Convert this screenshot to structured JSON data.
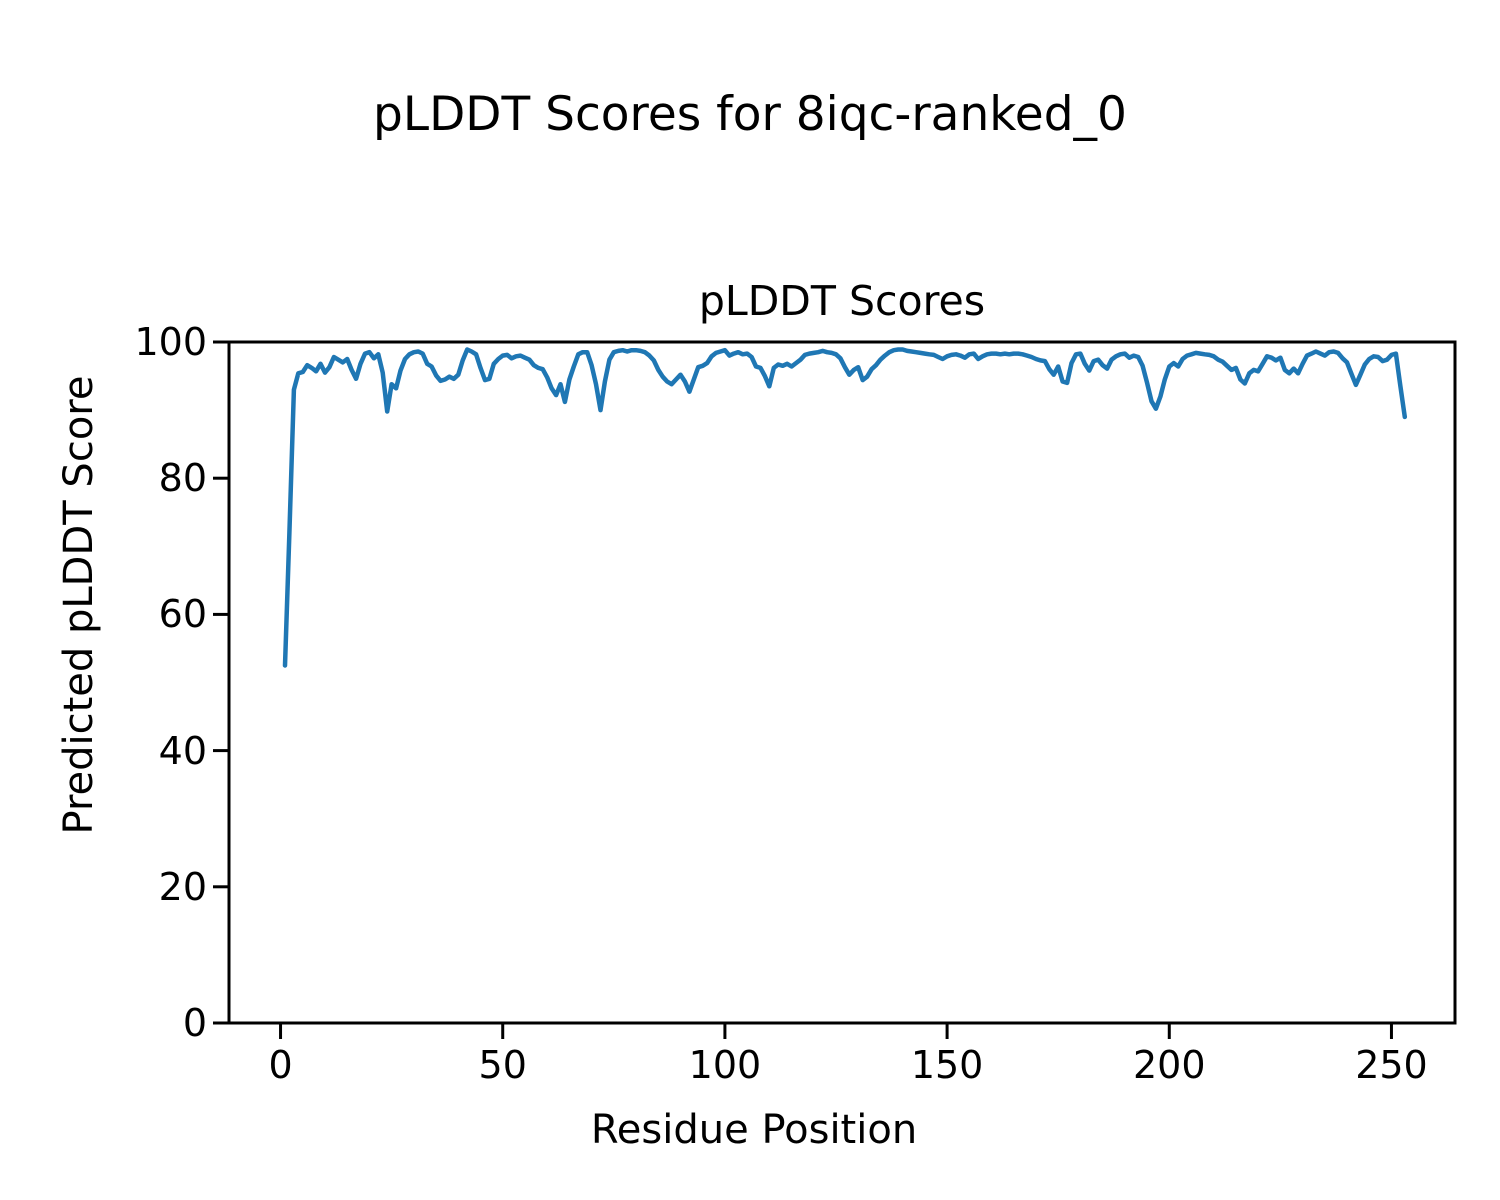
{
  "figure": {
    "suptitle": "pLDDT Scores for 8iqc-ranked_0"
  },
  "chart_data": {
    "type": "line",
    "title": "pLDDT Scores",
    "xlabel": "Residue Position",
    "ylabel": "Predicted pLDDT Score",
    "line_color": "#1f77b4",
    "axis_color": "#000000",
    "grid": false,
    "legend": null,
    "xlim": [
      -11.6,
      264.3
    ],
    "ylim": [
      0,
      100
    ],
    "xticks": [
      0,
      50,
      100,
      150,
      200,
      250
    ],
    "yticks": [
      0,
      20,
      40,
      60,
      80,
      100
    ],
    "x_start": 1,
    "x_step": 1,
    "values": [
      52.5,
      72.0,
      93.0,
      95.4,
      95.6,
      96.6,
      96.2,
      95.7,
      96.8,
      95.5,
      96.3,
      97.8,
      97.4,
      97.0,
      97.5,
      95.9,
      94.6,
      96.8,
      98.3,
      98.5,
      97.6,
      98.2,
      95.5,
      89.8,
      93.8,
      93.2,
      95.8,
      97.5,
      98.2,
      98.5,
      98.6,
      98.3,
      96.8,
      96.4,
      95.1,
      94.3,
      94.5,
      94.9,
      94.6,
      95.2,
      97.3,
      98.9,
      98.6,
      98.2,
      96.2,
      94.4,
      94.6,
      96.8,
      97.5,
      98.0,
      98.1,
      97.6,
      97.9,
      98.0,
      97.7,
      97.4,
      96.6,
      96.2,
      96.0,
      94.8,
      93.2,
      92.2,
      93.8,
      91.2,
      94.5,
      96.4,
      98.2,
      98.5,
      98.5,
      96.6,
      93.8,
      90.0,
      94.2,
      97.4,
      98.5,
      98.7,
      98.8,
      98.6,
      98.8,
      98.8,
      98.7,
      98.5,
      98.0,
      97.3,
      95.9,
      94.9,
      94.2,
      93.8,
      94.5,
      95.2,
      94.2,
      92.7,
      94.5,
      96.3,
      96.5,
      96.9,
      97.9,
      98.4,
      98.6,
      98.8,
      98.0,
      98.3,
      98.5,
      98.2,
      98.3,
      97.8,
      96.4,
      96.2,
      95.0,
      93.5,
      96.2,
      96.7,
      96.5,
      96.8,
      96.4,
      96.9,
      97.4,
      98.1,
      98.3,
      98.4,
      98.5,
      98.7,
      98.5,
      98.4,
      98.2,
      97.6,
      96.3,
      95.2,
      95.9,
      96.3,
      94.4,
      94.9,
      96.0,
      96.6,
      97.4,
      98.0,
      98.5,
      98.8,
      98.9,
      98.9,
      98.7,
      98.6,
      98.5,
      98.4,
      98.3,
      98.2,
      98.1,
      97.8,
      97.5,
      97.9,
      98.1,
      98.2,
      98.0,
      97.7,
      98.2,
      98.3,
      97.5,
      97.9,
      98.2,
      98.3,
      98.3,
      98.2,
      98.3,
      98.2,
      98.3,
      98.3,
      98.2,
      98.0,
      97.8,
      97.5,
      97.3,
      97.2,
      96.0,
      95.2,
      96.4,
      94.2,
      94.0,
      96.9,
      98.2,
      98.3,
      96.8,
      95.8,
      97.2,
      97.4,
      96.6,
      96.1,
      97.4,
      97.9,
      98.2,
      98.3,
      97.7,
      98.0,
      97.8,
      96.5,
      94.0,
      91.3,
      90.2,
      92.0,
      94.5,
      96.4,
      96.9,
      96.4,
      97.5,
      98.0,
      98.2,
      98.4,
      98.3,
      98.2,
      98.1,
      97.9,
      97.4,
      97.1,
      96.5,
      95.9,
      96.2,
      94.5,
      93.9,
      95.4,
      95.9,
      95.7,
      96.8,
      97.9,
      97.7,
      97.3,
      97.7,
      95.9,
      95.4,
      96.1,
      95.4,
      96.8,
      98.0,
      98.3,
      98.6,
      98.3,
      98.0,
      98.5,
      98.6,
      98.4,
      97.6,
      97.0,
      95.3,
      93.7,
      95.2,
      96.7,
      97.5,
      97.9,
      97.8,
      97.2,
      97.4,
      98.1,
      98.3,
      93.6,
      89.0
    ]
  }
}
